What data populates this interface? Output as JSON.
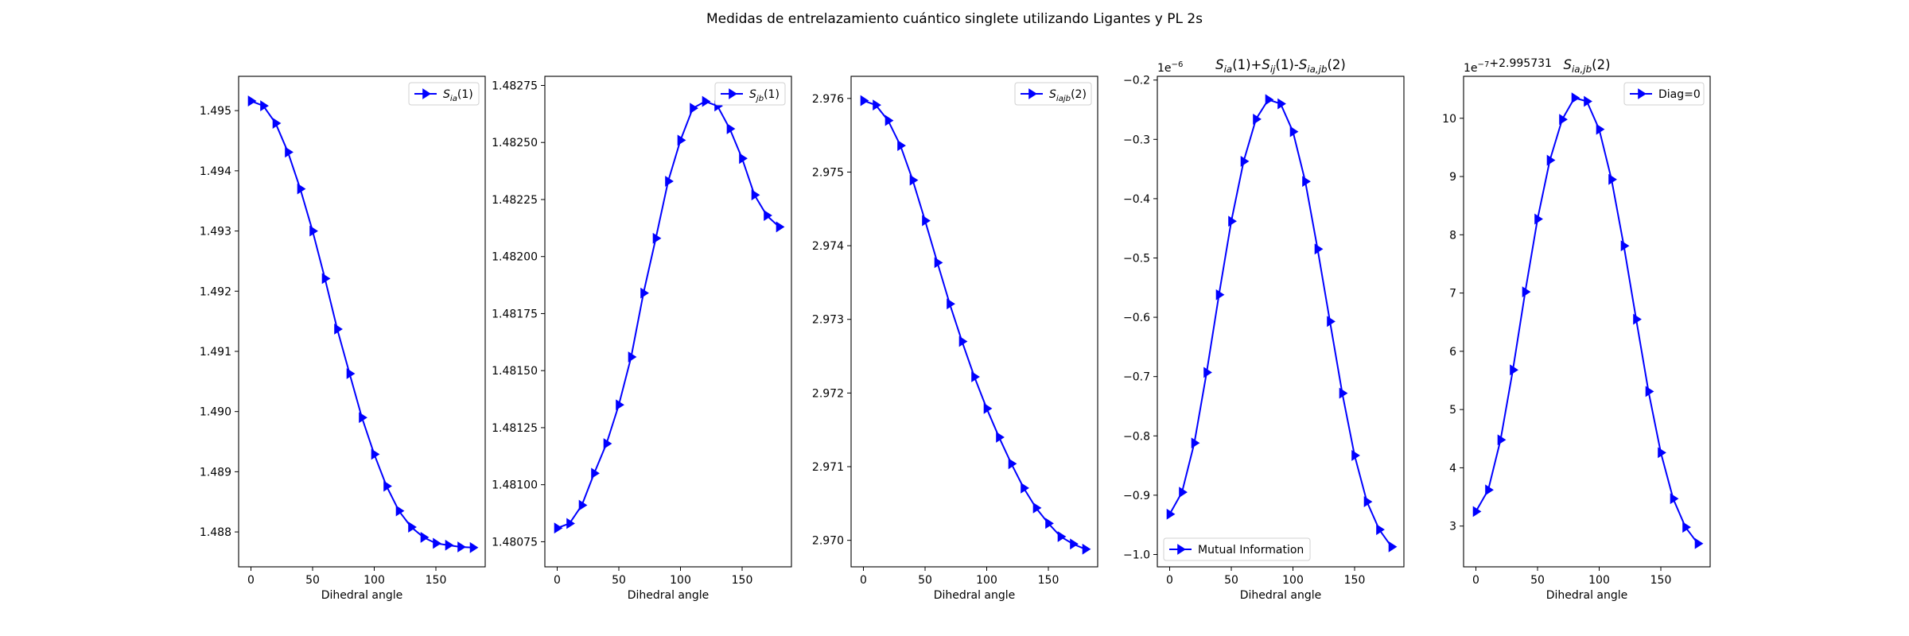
{
  "suptitle": "Medidas de entrelazamiento cuántico singlete utilizando Ligantes y PL 2s",
  "colors": {
    "series": "#0000ff",
    "axes": "#000000",
    "background": "#ffffff"
  },
  "chart_data": [
    {
      "type": "line",
      "title": "",
      "xlabel": "Dihedral angle",
      "ylabel": "",
      "legend": {
        "position": "upper right",
        "entries": [
          {
            "base": "S",
            "sub": "ia",
            "suffix": "(1)"
          }
        ]
      },
      "xlim": [
        -10,
        190
      ],
      "ylim": [
        1.48742,
        1.49557
      ],
      "xticks": [
        0,
        50,
        100,
        150
      ],
      "yticks": [
        1.488,
        1.489,
        1.49,
        1.491,
        1.492,
        1.493,
        1.494,
        1.495
      ],
      "ytick_labels": [
        "1.488",
        "1.489",
        "1.490",
        "1.491",
        "1.492",
        "1.493",
        "1.494",
        "1.495"
      ],
      "offset_text": [],
      "x": [
        0,
        10,
        20,
        30,
        40,
        50,
        60,
        70,
        80,
        90,
        100,
        110,
        120,
        130,
        140,
        150,
        160,
        170,
        180
      ],
      "series": [
        {
          "values": [
            1.49516,
            1.49508,
            1.49479,
            1.49431,
            1.4937,
            1.493,
            1.49221,
            1.49137,
            1.49063,
            1.4899,
            1.48929,
            1.48876,
            1.48835,
            1.48808,
            1.48791,
            1.48781,
            1.48778,
            1.48775,
            1.48774
          ]
        }
      ],
      "grid": false,
      "marker": "triangle-right"
    },
    {
      "type": "line",
      "title": "",
      "xlabel": "Dihedral angle",
      "ylabel": "",
      "legend": {
        "position": "upper right",
        "entries": [
          {
            "base": "S",
            "sub": "jb",
            "suffix": "(1)"
          }
        ]
      },
      "xlim": [
        -10,
        190
      ],
      "ylim": [
        1.48064,
        1.48279
      ],
      "xticks": [
        0,
        50,
        100,
        150
      ],
      "yticks": [
        1.48075,
        1.481,
        1.48125,
        1.4815,
        1.48175,
        1.482,
        1.48225,
        1.4825,
        1.48275
      ],
      "ytick_labels": [
        "1.48075",
        "1.48100",
        "1.48125",
        "1.48150",
        "1.48175",
        "1.48200",
        "1.48225",
        "1.48250",
        "1.48275"
      ],
      "offset_text": [],
      "x": [
        0,
        10,
        20,
        30,
        40,
        50,
        60,
        70,
        80,
        90,
        100,
        110,
        120,
        130,
        140,
        150,
        160,
        170,
        180
      ],
      "series": [
        {
          "values": [
            1.48081,
            1.48083,
            1.48091,
            1.48105,
            1.48118,
            1.48135,
            1.48156,
            1.48184,
            1.48208,
            1.48233,
            1.48251,
            1.48265,
            1.48268,
            1.48266,
            1.48256,
            1.48243,
            1.48227,
            1.48218,
            1.48213
          ]
        }
      ],
      "grid": false,
      "marker": "triangle-right"
    },
    {
      "type": "line",
      "title": "",
      "xlabel": "Dihedral angle",
      "ylabel": "",
      "legend": {
        "position": "upper right",
        "entries": [
          {
            "base": "S",
            "sub": "iajb",
            "suffix": "(2)"
          }
        ]
      },
      "xlim": [
        -10,
        190
      ],
      "ylim": [
        2.96964,
        2.9763
      ],
      "xticks": [
        0,
        50,
        100,
        150
      ],
      "yticks": [
        2.97,
        2.971,
        2.972,
        2.973,
        2.974,
        2.975,
        2.976
      ],
      "ytick_labels": [
        "2.970",
        "2.971",
        "2.972",
        "2.973",
        "2.974",
        "2.975",
        "2.976"
      ],
      "offset_text": [],
      "x": [
        0,
        10,
        20,
        30,
        40,
        50,
        60,
        70,
        80,
        90,
        100,
        110,
        120,
        130,
        140,
        150,
        160,
        170,
        180
      ],
      "series": [
        {
          "values": [
            2.97597,
            2.97591,
            2.9757,
            2.97536,
            2.97489,
            2.97434,
            2.97377,
            2.97321,
            2.9727,
            2.97222,
            2.97179,
            2.9714,
            2.97104,
            2.97071,
            2.97044,
            2.97023,
            2.97005,
            2.96995,
            2.96988
          ]
        }
      ],
      "grid": false,
      "marker": "triangle-right"
    },
    {
      "type": "line",
      "title": {
        "parts": [
          {
            "base": "S",
            "sub": "ia",
            "suffix": "(1)+"
          },
          {
            "base": "S",
            "sub": "ij",
            "suffix": "(1)-"
          },
          {
            "base": "S",
            "sub": "ia,jb",
            "suffix": "(2)"
          }
        ]
      },
      "xlabel": "Dihedral angle",
      "ylabel": "",
      "legend": {
        "position": "lower left",
        "entries": [
          {
            "base": "Mutual Information",
            "sub": "",
            "suffix": ""
          }
        ]
      },
      "xlim": [
        -10,
        190
      ],
      "ylim": [
        -1.0208,
        -0.1937
      ],
      "xticks": [
        0,
        50,
        100,
        150
      ],
      "yticks": [
        -1.0,
        -0.9,
        -0.8,
        -0.7,
        -0.6,
        -0.5,
        -0.4,
        -0.3,
        -0.2
      ],
      "ytick_labels": [
        "−1.0",
        "−0.9",
        "−0.8",
        "−0.7",
        "−0.6",
        "−0.5",
        "−0.4",
        "−0.3",
        "−0.2"
      ],
      "offset_text": [
        {
          "base": "1e",
          "sup": "−6"
        }
      ],
      "x": [
        0,
        10,
        20,
        30,
        40,
        50,
        60,
        70,
        80,
        90,
        100,
        110,
        120,
        130,
        140,
        150,
        160,
        170,
        180
      ],
      "series": [
        {
          "values": [
            -0.932,
            -0.895,
            -0.812,
            -0.693,
            -0.562,
            -0.438,
            -0.337,
            -0.266,
            -0.233,
            -0.24,
            -0.287,
            -0.371,
            -0.485,
            -0.607,
            -0.728,
            -0.833,
            -0.911,
            -0.958,
            -0.987
          ]
        }
      ],
      "grid": false,
      "marker": "triangle-right"
    },
    {
      "type": "line",
      "title": {
        "parts": [
          {
            "base": "S",
            "sub": "ia,jb",
            "suffix": "(2)"
          }
        ]
      },
      "xlabel": "Dihedral angle",
      "ylabel": "",
      "legend": {
        "position": "upper right",
        "entries": [
          {
            "base": "Diag=0",
            "sub": "",
            "suffix": ""
          }
        ]
      },
      "xlim": [
        -10,
        190
      ],
      "ylim": [
        2.3,
        10.72
      ],
      "xticks": [
        0,
        50,
        100,
        150
      ],
      "yticks": [
        3,
        4,
        5,
        6,
        7,
        8,
        9,
        10
      ],
      "ytick_labels": [
        "3",
        "4",
        "5",
        "6",
        "7",
        "8",
        "9",
        "10"
      ],
      "offset_text": [
        {
          "base": "1e",
          "sup": "−7"
        },
        {
          "base": "+2.995731",
          "sup": ""
        }
      ],
      "x": [
        0,
        10,
        20,
        30,
        40,
        50,
        60,
        70,
        80,
        90,
        100,
        110,
        120,
        130,
        140,
        150,
        160,
        170,
        180
      ],
      "series": [
        {
          "values": [
            3.25,
            3.62,
            4.48,
            5.68,
            7.02,
            8.27,
            9.28,
            9.98,
            10.35,
            10.29,
            9.81,
            8.95,
            7.81,
            6.55,
            5.31,
            4.26,
            3.47,
            2.98,
            2.7
          ]
        }
      ],
      "grid": false,
      "marker": "triangle-right"
    }
  ]
}
